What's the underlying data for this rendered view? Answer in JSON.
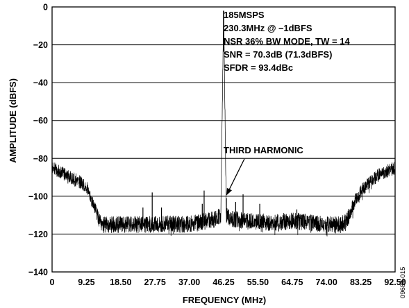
{
  "chart_data": {
    "type": "line",
    "xlabel": "FREQUENCY (MHz)",
    "ylabel": "AMPLITUDE (dBFS)",
    "xlim": [
      0,
      92.5
    ],
    "ylim": [
      -140,
      0
    ],
    "x_ticks": [
      "0",
      "9.25",
      "18.50",
      "27.75",
      "37.00",
      "46.25",
      "55.50",
      "64.75",
      "74.00",
      "83.25",
      "92.50"
    ],
    "x_tick_values": [
      0,
      9.25,
      18.5,
      27.75,
      37.0,
      46.25,
      55.5,
      64.75,
      74.0,
      83.25,
      92.5
    ],
    "y_ticks": [
      "0",
      "−20",
      "−40",
      "−60",
      "−80",
      "−100",
      "−120",
      "−140"
    ],
    "y_tick_values": [
      0,
      -20,
      -40,
      -60,
      -80,
      -100,
      -120,
      -140
    ],
    "grid": "horizontal",
    "annotation_lines": [
      "185MSPS",
      "230.3MHz @ –1dBFS",
      "NSR 36% BW MODE, TW = 14",
      "SNR = 70.3dB (71.3dBFS)",
      "SFDR = 93.4dBc"
    ],
    "callout": {
      "text": "THIRD HARMONIC",
      "points_to": {
        "x": 47.0,
        "y": -101
      }
    },
    "figure_id": "09684-015",
    "series": [
      {
        "x": [
          0,
          2,
          4,
          6,
          8,
          9.5,
          10.5,
          11.5,
          12.5,
          13.2,
          14,
          20,
          25,
          30,
          35,
          40,
          44,
          45.5,
          46.25,
          47,
          48.5,
          52,
          60,
          65,
          70,
          75,
          78,
          79.5,
          80.5,
          82,
          84,
          86,
          88,
          90,
          92.5
        ],
        "y": [
          -85,
          -87,
          -89,
          -91,
          -93,
          -96,
          -101,
          -106,
          -111,
          -114,
          -115,
          -115,
          -115,
          -114.5,
          -115,
          -114,
          -112,
          -110,
          -2,
          -110,
          -112,
          -113,
          -114,
          -113,
          -114,
          -115,
          -115,
          -113,
          -108,
          -101,
          -96,
          -92,
          -89,
          -87,
          -85
        ]
      }
    ],
    "spurs": [
      {
        "x": 24.5,
        "y": -106
      },
      {
        "x": 27.0,
        "y": -98
      },
      {
        "x": 29.5,
        "y": -106
      },
      {
        "x": 40.5,
        "y": -104
      },
      {
        "x": 41.0,
        "y": -97
      },
      {
        "x": 47.0,
        "y": -101
      },
      {
        "x": 49.5,
        "y": -103
      },
      {
        "x": 51.5,
        "y": -99
      },
      {
        "x": 56.0,
        "y": -104
      },
      {
        "x": 66.0,
        "y": -107
      }
    ]
  }
}
